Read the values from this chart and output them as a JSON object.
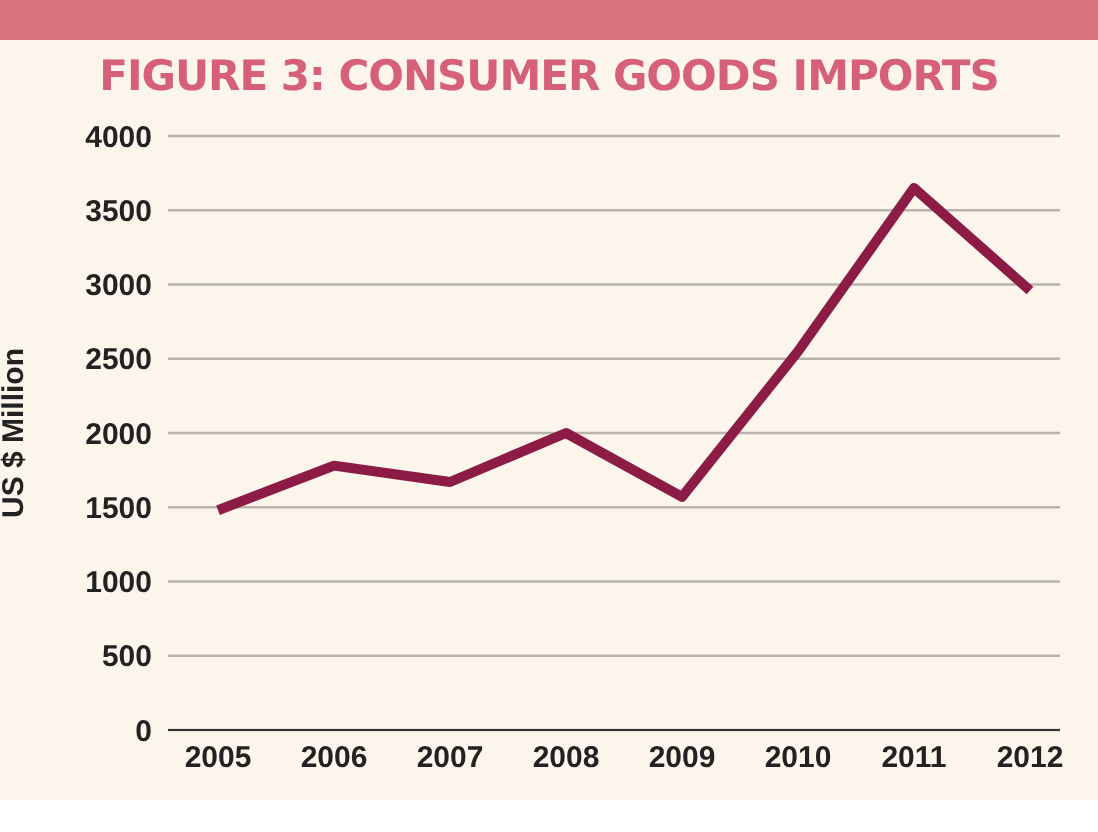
{
  "chart_data": {
    "type": "line",
    "title": "FIGURE 3: CONSUMER GOODS IMPORTS",
    "ylabel": "US $ Million",
    "categories": [
      "2005",
      "2006",
      "2007",
      "2008",
      "2009",
      "2010",
      "2011",
      "2012"
    ],
    "series": [
      {
        "color": "#8c1c45",
        "values": [
          1480,
          1780,
          1670,
          2000,
          1570,
          2550,
          3650,
          2960
        ]
      }
    ],
    "ylim": [
      0,
      4000
    ],
    "yticks": [
      0,
      500,
      1000,
      1500,
      2000,
      2500,
      3000,
      3500,
      4000
    ],
    "grid": "y",
    "marker": "none",
    "line_style": "solid",
    "legend": false
  }
}
